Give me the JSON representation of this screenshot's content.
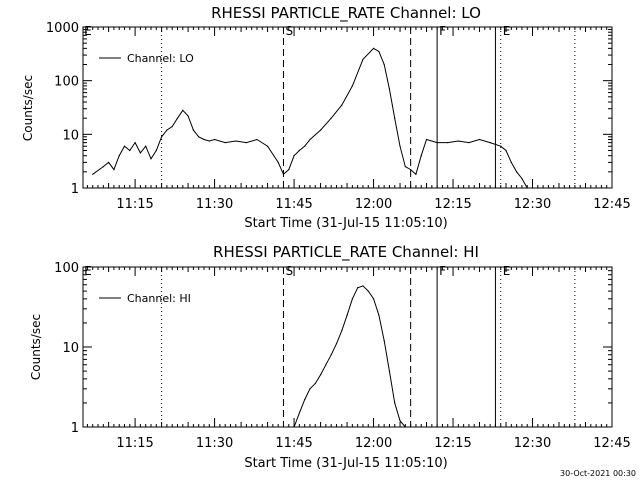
{
  "footer_timestamp": "30-Oct-2021 00:30",
  "chart_data": [
    {
      "type": "line",
      "title": "RHESSI PARTICLE_RATE Channel: LO",
      "xlabel": "Start Time (31-Jul-15 11:05:10)",
      "ylabel": "Counts/sec",
      "yscale": "log",
      "xlim_minutes_after_1100": [
        5.17,
        45
      ],
      "ylim": [
        1,
        1000
      ],
      "x_tick_labels": [
        "11:15",
        "11:30",
        "11:45",
        "12:00",
        "12:15",
        "12:30",
        "12:45"
      ],
      "x_tick_minutes": [
        15,
        30,
        45,
        60,
        75,
        90,
        105
      ],
      "y_tick_labels": [
        "1",
        "10",
        "100",
        "1000"
      ],
      "y_tick_values": [
        1,
        10,
        100,
        1000
      ],
      "legend": {
        "position": "top-left",
        "entries": [
          "Channel: LO"
        ]
      },
      "markers": [
        {
          "label": "E",
          "time": "11:05",
          "style": "solid"
        },
        {
          "label": "",
          "time": "11:20",
          "style": "dotted"
        },
        {
          "label": "S",
          "time": "11:43",
          "style": "dashed"
        },
        {
          "label": "",
          "time": "12:07",
          "style": "dashed"
        },
        {
          "label": "F",
          "time": "12:12",
          "style": "solid"
        },
        {
          "label": "",
          "time": "12:23",
          "style": "solid"
        },
        {
          "label": "E",
          "time": "12:24",
          "style": "dotted"
        },
        {
          "label": "",
          "time": "12:38",
          "style": "dotted"
        }
      ],
      "series": [
        {
          "name": "Channel: LO",
          "x": [
            "11:07",
            "11:09",
            "11:10",
            "11:11",
            "11:12",
            "11:13",
            "11:14",
            "11:15",
            "11:16",
            "11:17",
            "11:18",
            "11:19",
            "11:20",
            "11:21",
            "11:22",
            "11:23",
            "11:24",
            "11:25",
            "11:26",
            "11:27",
            "11:28",
            "11:29",
            "11:30",
            "11:32",
            "11:34",
            "11:36",
            "11:38",
            "11:40",
            "11:42",
            "11:43",
            "11:44",
            "11:45",
            "11:46",
            "11:47",
            "11:48",
            "11:50",
            "11:52",
            "11:54",
            "11:56",
            "11:58",
            "12:00",
            "12:01",
            "12:02",
            "12:03",
            "12:04",
            "12:05",
            "12:06",
            "12:07",
            "12:08",
            "12:09",
            "12:10",
            "12:12",
            "12:14",
            "12:16",
            "12:18",
            "12:20",
            "12:22",
            "12:24",
            "12:25",
            "12:26",
            "12:27",
            "12:28",
            "12:29",
            "12:30",
            "12:31",
            "12:32",
            "12:33",
            "12:34",
            "12:35",
            "12:36",
            "12:37",
            "12:38"
          ],
          "y": [
            1.8,
            2.5,
            3.0,
            2.2,
            4.0,
            6.0,
            5.0,
            7.0,
            4.5,
            6.0,
            3.5,
            5.0,
            9.0,
            12,
            14,
            20,
            28,
            22,
            12,
            9,
            8,
            7.5,
            8,
            7,
            7.5,
            7,
            8,
            6,
            3,
            1.8,
            2.2,
            4,
            5,
            6,
            8,
            12,
            20,
            35,
            80,
            250,
            400,
            350,
            200,
            70,
            20,
            6,
            2.5,
            2.2,
            1.8,
            4,
            8,
            7,
            7,
            7.5,
            7,
            8,
            7,
            6,
            5,
            3,
            2,
            1.5,
            1,
            1,
            1,
            1,
            1,
            1,
            1,
            1,
            1,
            1
          ]
        }
      ]
    },
    {
      "type": "line",
      "title": "RHESSI PARTICLE_RATE Channel: HI",
      "xlabel": "Start Time (31-Jul-15 11:05:10)",
      "ylabel": "Counts/sec",
      "yscale": "log",
      "ylim": [
        1,
        100
      ],
      "x_tick_labels": [
        "11:15",
        "11:30",
        "11:45",
        "12:00",
        "12:15",
        "12:30",
        "12:45"
      ],
      "x_tick_minutes": [
        15,
        30,
        45,
        60,
        75,
        90,
        105
      ],
      "y_tick_labels": [
        "1",
        "10",
        "100"
      ],
      "y_tick_values": [
        1,
        10,
        100
      ],
      "legend": {
        "position": "top-left",
        "entries": [
          "Channel: HI"
        ]
      },
      "markers": [
        {
          "label": "E",
          "time": "11:05",
          "style": "solid"
        },
        {
          "label": "",
          "time": "11:20",
          "style": "dotted"
        },
        {
          "label": "S",
          "time": "11:43",
          "style": "dashed"
        },
        {
          "label": "",
          "time": "12:07",
          "style": "dashed"
        },
        {
          "label": "F",
          "time": "12:12",
          "style": "solid"
        },
        {
          "label": "",
          "time": "12:23",
          "style": "solid"
        },
        {
          "label": "E",
          "time": "12:24",
          "style": "dotted"
        },
        {
          "label": "",
          "time": "12:38",
          "style": "dotted"
        }
      ],
      "series": [
        {
          "name": "Channel: HI",
          "x": [
            "11:45",
            "11:46",
            "11:47",
            "11:48",
            "11:49",
            "11:50",
            "11:51",
            "11:52",
            "11:53",
            "11:54",
            "11:55",
            "11:56",
            "11:57",
            "11:58",
            "11:59",
            "12:00",
            "12:01",
            "12:02",
            "12:03",
            "12:04",
            "12:05",
            "12:06"
          ],
          "y": [
            1,
            1.5,
            2.2,
            3,
            3.5,
            4.5,
            6,
            8,
            11,
            16,
            25,
            40,
            55,
            58,
            50,
            40,
            25,
            12,
            5,
            2,
            1.2,
            1
          ]
        }
      ]
    }
  ]
}
